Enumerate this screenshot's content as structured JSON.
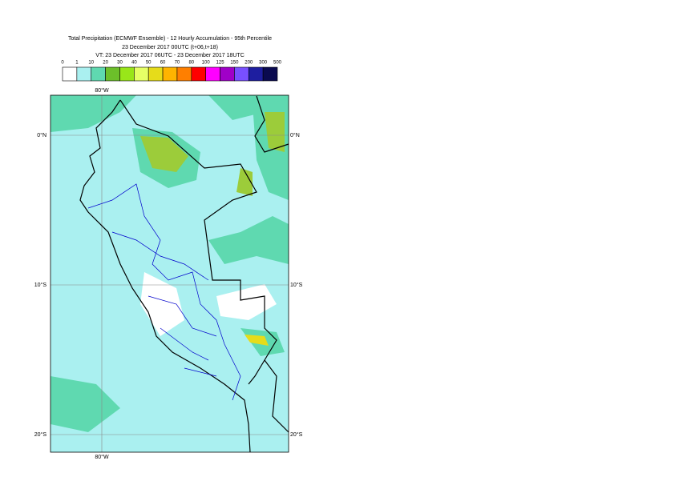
{
  "title_lines": [
    "Total Precipitation (ECMWF Ensemble) - 12 Hourly Accumulation - 95th Percentile",
    "23 December 2017 00UTC (t+06,t+18)",
    "VT: 23 December 2017 06UTC - 23 December 2017 18UTC"
  ],
  "colorbar": {
    "levels": [
      "0",
      "1",
      "10",
      "20",
      "30",
      "40",
      "50",
      "60",
      "70",
      "80",
      "100",
      "125",
      "150",
      "200",
      "300",
      "500"
    ],
    "colors": [
      "#ffffff",
      "#aaf0f0",
      "#5fd9b0",
      "#6cbf2a",
      "#99e619",
      "#e6ff66",
      "#e6dc1a",
      "#ffb400",
      "#ff7f00",
      "#ff0000",
      "#ff00ff",
      "#a000c8",
      "#7850ff",
      "#1e1ea0",
      "#0a0a50"
    ]
  },
  "lat_labels": [
    "0°N",
    "10°S",
    "20°S"
  ],
  "lon_labels": [
    "80°W"
  ]
}
